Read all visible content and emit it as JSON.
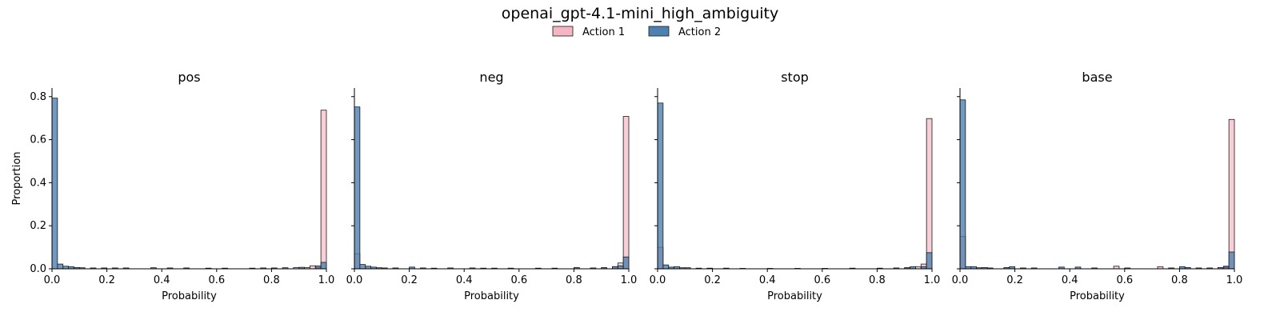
{
  "suptitle": "openai_gpt-4.1-mini_high_ambiguity",
  "legend": {
    "placement": "top-center",
    "entries": [
      {
        "label": "Action 1",
        "color": "#f4b6c2"
      },
      {
        "label": "Action 2",
        "color": "#4f81b0"
      }
    ]
  },
  "colors": {
    "action1": "#f4b6c2",
    "action2": "#4f81b0",
    "edge": "#1a1a1a"
  },
  "chart_data": [
    {
      "type": "bar",
      "title": "pos",
      "xlabel": "Probability",
      "ylabel": "Proportion",
      "xlim": [
        0,
        1
      ],
      "ylim": [
        0,
        0.84
      ],
      "bin_width": 0.02,
      "xticks": [
        "0.0",
        "0.2",
        "0.4",
        "0.6",
        "0.8",
        "1.0"
      ],
      "yticks": [
        "0.0",
        "0.2",
        "0.4",
        "0.6",
        "0.8"
      ],
      "series": [
        {
          "name": "Action 1",
          "bins": [
            [
              0.88,
              0.006
            ],
            [
              0.92,
              0.006
            ],
            [
              0.94,
              0.014
            ],
            [
              0.96,
              0.014
            ],
            [
              0.98,
              0.737
            ]
          ]
        },
        {
          "name": "Action 2",
          "bins": [
            [
              0.0,
              0.793
            ],
            [
              0.02,
              0.022
            ],
            [
              0.04,
              0.012
            ],
            [
              0.06,
              0.01
            ],
            [
              0.08,
              0.006
            ],
            [
              0.1,
              0.005
            ],
            [
              0.14,
              0.004
            ],
            [
              0.18,
              0.004
            ],
            [
              0.22,
              0.004
            ],
            [
              0.26,
              0.004
            ],
            [
              0.36,
              0.005
            ],
            [
              0.42,
              0.004
            ],
            [
              0.48,
              0.004
            ],
            [
              0.56,
              0.003
            ],
            [
              0.62,
              0.003
            ],
            [
              0.72,
              0.003
            ],
            [
              0.76,
              0.004
            ],
            [
              0.8,
              0.004
            ],
            [
              0.84,
              0.005
            ],
            [
              0.9,
              0.007
            ],
            [
              0.96,
              0.008
            ],
            [
              0.98,
              0.03
            ]
          ]
        }
      ]
    },
    {
      "type": "bar",
      "title": "neg",
      "xlabel": "Probability",
      "ylabel": "",
      "xlim": [
        0,
        1
      ],
      "ylim": [
        0,
        0.84
      ],
      "bin_width": 0.02,
      "xticks": [
        "0.0",
        "0.2",
        "0.4",
        "0.6",
        "0.8",
        "1.0"
      ],
      "yticks": [
        "",
        "",
        "",
        "",
        ""
      ],
      "series": [
        {
          "name": "Action 1",
          "bins": [
            [
              0.0,
              0.07
            ],
            [
              0.9,
              0.005
            ],
            [
              0.94,
              0.01
            ],
            [
              0.96,
              0.027
            ],
            [
              0.98,
              0.708
            ]
          ]
        },
        {
          "name": "Action 2",
          "bins": [
            [
              0.0,
              0.752
            ],
            [
              0.02,
              0.02
            ],
            [
              0.04,
              0.012
            ],
            [
              0.06,
              0.008
            ],
            [
              0.08,
              0.005
            ],
            [
              0.1,
              0.004
            ],
            [
              0.14,
              0.004
            ],
            [
              0.2,
              0.008
            ],
            [
              0.24,
              0.004
            ],
            [
              0.28,
              0.003
            ],
            [
              0.34,
              0.004
            ],
            [
              0.42,
              0.004
            ],
            [
              0.46,
              0.003
            ],
            [
              0.5,
              0.003
            ],
            [
              0.56,
              0.003
            ],
            [
              0.66,
              0.003
            ],
            [
              0.72,
              0.003
            ],
            [
              0.8,
              0.006
            ],
            [
              0.86,
              0.004
            ],
            [
              0.9,
              0.005
            ],
            [
              0.94,
              0.01
            ],
            [
              0.96,
              0.014
            ],
            [
              0.98,
              0.055
            ]
          ]
        }
      ]
    },
    {
      "type": "bar",
      "title": "stop",
      "xlabel": "Probability",
      "ylabel": "",
      "xlim": [
        0,
        1
      ],
      "ylim": [
        0,
        0.84
      ],
      "bin_width": 0.02,
      "xticks": [
        "0.0",
        "0.2",
        "0.4",
        "0.6",
        "0.8",
        "1.0"
      ],
      "yticks": [
        "",
        "",
        "",
        "",
        ""
      ],
      "series": [
        {
          "name": "Action 1",
          "bins": [
            [
              0.0,
              0.1
            ],
            [
              0.9,
              0.005
            ],
            [
              0.94,
              0.01
            ],
            [
              0.96,
              0.022
            ],
            [
              0.98,
              0.698
            ]
          ]
        },
        {
          "name": "Action 2",
          "bins": [
            [
              0.0,
              0.77
            ],
            [
              0.02,
              0.018
            ],
            [
              0.04,
              0.008
            ],
            [
              0.06,
              0.01
            ],
            [
              0.08,
              0.005
            ],
            [
              0.1,
              0.005
            ],
            [
              0.14,
              0.003
            ],
            [
              0.18,
              0.003
            ],
            [
              0.24,
              0.003
            ],
            [
              0.3,
              0.002
            ],
            [
              0.4,
              0.002
            ],
            [
              0.5,
              0.002
            ],
            [
              0.6,
              0.002
            ],
            [
              0.7,
              0.003
            ],
            [
              0.8,
              0.003
            ],
            [
              0.86,
              0.004
            ],
            [
              0.9,
              0.005
            ],
            [
              0.92,
              0.01
            ],
            [
              0.96,
              0.01
            ],
            [
              0.98,
              0.075
            ]
          ]
        }
      ]
    },
    {
      "type": "bar",
      "title": "base",
      "xlabel": "Probability",
      "ylabel": "",
      "xlim": [
        0,
        1
      ],
      "ylim": [
        0,
        0.84
      ],
      "bin_width": 0.02,
      "xticks": [
        "0.0",
        "0.2",
        "0.4",
        "0.6",
        "0.8",
        "1.0"
      ],
      "yticks": [
        "",
        "",
        "",
        "",
        ""
      ],
      "series": [
        {
          "name": "Action 1",
          "bins": [
            [
              0.0,
              0.15
            ],
            [
              0.56,
              0.012
            ],
            [
              0.72,
              0.01
            ],
            [
              0.96,
              0.012
            ],
            [
              0.98,
              0.694
            ]
          ]
        },
        {
          "name": "Action 2",
          "bins": [
            [
              0.0,
              0.785
            ],
            [
              0.02,
              0.01
            ],
            [
              0.04,
              0.01
            ],
            [
              0.06,
              0.005
            ],
            [
              0.08,
              0.006
            ],
            [
              0.1,
              0.004
            ],
            [
              0.16,
              0.006
            ],
            [
              0.18,
              0.01
            ],
            [
              0.22,
              0.004
            ],
            [
              0.26,
              0.004
            ],
            [
              0.36,
              0.008
            ],
            [
              0.42,
              0.008
            ],
            [
              0.48,
              0.004
            ],
            [
              0.6,
              0.004
            ],
            [
              0.76,
              0.004
            ],
            [
              0.8,
              0.01
            ],
            [
              0.82,
              0.006
            ],
            [
              0.86,
              0.004
            ],
            [
              0.9,
              0.004
            ],
            [
              0.94,
              0.006
            ],
            [
              0.96,
              0.008
            ],
            [
              0.98,
              0.078
            ]
          ]
        }
      ]
    }
  ]
}
